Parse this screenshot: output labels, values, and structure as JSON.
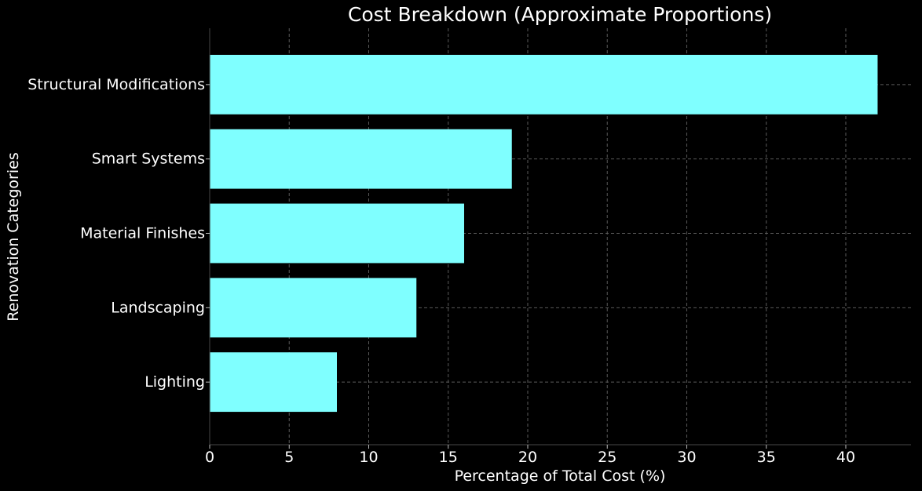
{
  "chart_data": {
    "type": "bar",
    "orientation": "horizontal",
    "title": "Cost Breakdown (Approximate Proportions)",
    "xlabel": "Percentage of Total Cost (%)",
    "ylabel": "Renovation Categories",
    "categories": [
      "Lighting",
      "Landscaping",
      "Material Finishes",
      "Smart Systems",
      "Structural Modifications"
    ],
    "values": [
      8,
      13,
      16,
      19,
      42
    ],
    "xlim": [
      0,
      44.1
    ],
    "xticks": [
      0,
      5,
      10,
      15,
      20,
      25,
      30,
      35,
      40
    ],
    "grid": true,
    "bar_color": "#7fffff",
    "background": "#000000"
  }
}
